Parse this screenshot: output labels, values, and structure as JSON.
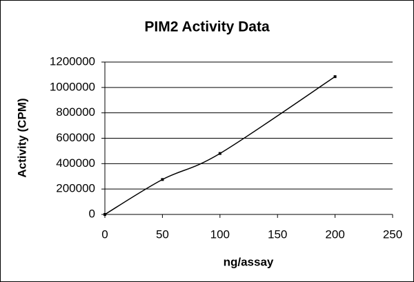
{
  "chart_data": {
    "type": "line",
    "title": "PIM2 Activity Data",
    "x_label": "ng/assay",
    "y_label": "Activity (CPM)",
    "series": [
      {
        "name": "Activity",
        "color": "#000000",
        "x": [
          0,
          50,
          100,
          200
        ],
        "values": [
          0,
          275000,
          480000,
          1085000
        ]
      }
    ],
    "xlim": [
      0,
      250
    ],
    "xticks": [
      0,
      50,
      100,
      150,
      200,
      250
    ],
    "ylim": [
      0,
      1200000
    ],
    "yticks": [
      0,
      200000,
      400000,
      600000,
      800000,
      1000000,
      1200000
    ],
    "grid": true,
    "smooth": true
  }
}
